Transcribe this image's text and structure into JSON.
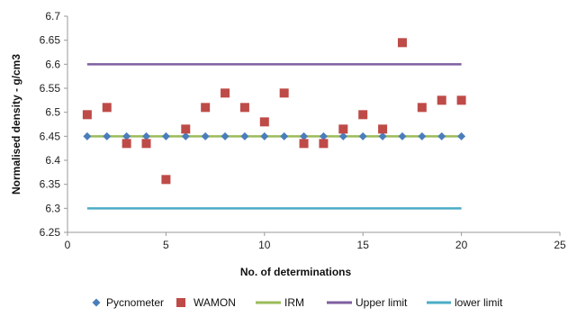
{
  "chart_data": {
    "type": "scatter",
    "title": "",
    "xlabel": "No. of determinations",
    "ylabel": "Normalised density - g/cm3",
    "xlim": [
      0,
      25
    ],
    "ylim": [
      6.25,
      6.7
    ],
    "x_ticks": [
      0,
      5,
      10,
      15,
      20,
      25
    ],
    "y_ticks": [
      6.25,
      6.3,
      6.35,
      6.4,
      6.45,
      6.5,
      6.55,
      6.6,
      6.65,
      6.7
    ],
    "y_tick_labels": [
      "6.25",
      "6.3",
      "6.35",
      "6.4",
      "6.45",
      "6.5",
      "6.55",
      "6.6",
      "6.65",
      "6.7"
    ],
    "grid": false,
    "legend_position": "bottom",
    "series": [
      {
        "name": "Pycnometer",
        "kind": "marker",
        "marker": "diamond",
        "color": "#4a7ebb",
        "x": [
          1,
          2,
          3,
          4,
          5,
          6,
          7,
          8,
          9,
          10,
          11,
          12,
          13,
          14,
          15,
          16,
          17,
          18,
          19,
          20
        ],
        "y": [
          6.45,
          6.45,
          6.45,
          6.45,
          6.45,
          6.45,
          6.45,
          6.45,
          6.45,
          6.45,
          6.45,
          6.45,
          6.45,
          6.45,
          6.45,
          6.45,
          6.45,
          6.45,
          6.45,
          6.45
        ]
      },
      {
        "name": "WAMON",
        "kind": "marker",
        "marker": "square",
        "color": "#be4b48",
        "x": [
          1,
          2,
          3,
          4,
          5,
          6,
          7,
          8,
          9,
          10,
          11,
          12,
          13,
          14,
          15,
          16,
          17,
          18,
          19,
          20
        ],
        "y": [
          6.495,
          6.51,
          6.435,
          6.435,
          6.36,
          6.465,
          6.51,
          6.54,
          6.51,
          6.48,
          6.54,
          6.435,
          6.435,
          6.465,
          6.495,
          6.465,
          6.645,
          6.51,
          6.525,
          6.525
        ]
      },
      {
        "name": "IRM",
        "kind": "line",
        "color": "#9bbb59",
        "x": [
          1,
          20
        ],
        "y": [
          6.45,
          6.45
        ]
      },
      {
        "name": "Upper limit",
        "kind": "line",
        "color": "#7f5fa0",
        "x": [
          1,
          20
        ],
        "y": [
          6.6,
          6.6
        ]
      },
      {
        "name": "lower limit",
        "kind": "line",
        "color": "#4bacc6",
        "x": [
          1,
          20
        ],
        "y": [
          6.3,
          6.3
        ]
      }
    ]
  }
}
